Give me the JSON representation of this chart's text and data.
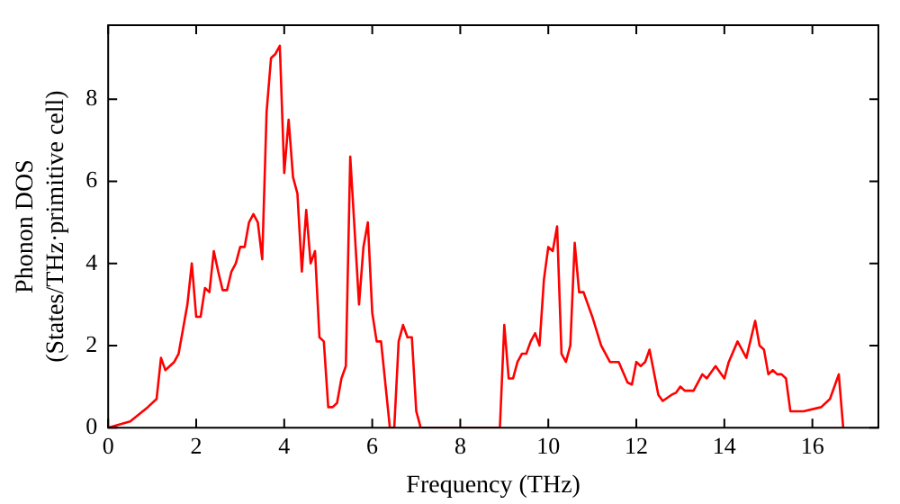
{
  "chart_data": {
    "type": "line",
    "xlabel": "Frequency (THz)",
    "ylabel": "Phonon DOS\n(States/THz·primitive cell)",
    "xlim": [
      0,
      17.5
    ],
    "ylim": [
      0,
      9.8
    ],
    "xticks": [
      0,
      2,
      4,
      6,
      8,
      10,
      12,
      14,
      16
    ],
    "yticks": [
      0,
      2,
      4,
      6,
      8
    ],
    "grid": false,
    "legend": false,
    "marker": "none",
    "line_style": "solid",
    "series": [
      {
        "color": "#ff0000",
        "x": [
          0,
          0.5,
          0.9,
          1.1,
          1.2,
          1.3,
          1.5,
          1.6,
          1.7,
          1.8,
          1.9,
          2.0,
          2.1,
          2.2,
          2.3,
          2.4,
          2.5,
          2.6,
          2.7,
          2.8,
          2.9,
          3.0,
          3.1,
          3.2,
          3.3,
          3.4,
          3.5,
          3.6,
          3.7,
          3.8,
          3.9,
          4.0,
          4.1,
          4.2,
          4.3,
          4.4,
          4.5,
          4.6,
          4.7,
          4.8,
          4.9,
          5.0,
          5.1,
          5.2,
          5.3,
          5.4,
          5.5,
          5.7,
          5.8,
          5.9,
          6.0,
          6.1,
          6.2,
          6.4,
          6.5,
          6.6,
          6.7,
          6.8,
          6.9,
          7.0,
          7.1,
          8.9,
          9.0,
          9.1,
          9.2,
          9.3,
          9.4,
          9.5,
          9.6,
          9.7,
          9.8,
          9.9,
          10.0,
          10.1,
          10.2,
          10.3,
          10.4,
          10.5,
          10.6,
          10.7,
          10.8,
          11.0,
          11.2,
          11.4,
          11.6,
          11.8,
          11.9,
          12.0,
          12.1,
          12.2,
          12.3,
          12.5,
          12.6,
          12.8,
          12.9,
          13.0,
          13.1,
          13.3,
          13.5,
          13.6,
          13.8,
          14.0,
          14.1,
          14.3,
          14.5,
          14.7,
          14.8,
          14.9,
          15.0,
          15.1,
          15.2,
          15.3,
          15.4,
          15.5,
          15.8,
          16.2,
          16.4,
          16.6,
          16.7
        ],
        "values": [
          0,
          0.15,
          0.5,
          0.7,
          1.7,
          1.4,
          1.6,
          1.8,
          2.4,
          3.0,
          4.0,
          2.7,
          2.7,
          3.4,
          3.3,
          4.3,
          3.8,
          3.35,
          3.35,
          3.8,
          4.0,
          4.4,
          4.4,
          5.0,
          5.2,
          5.0,
          4.1,
          7.7,
          9.0,
          9.1,
          9.3,
          6.2,
          7.5,
          6.1,
          5.7,
          3.8,
          5.3,
          4.0,
          4.3,
          2.2,
          2.1,
          0.5,
          0.5,
          0.6,
          1.2,
          1.5,
          6.6,
          3.0,
          4.4,
          5.0,
          2.8,
          2.1,
          2.1,
          0,
          0,
          2.1,
          2.5,
          2.2,
          2.2,
          0.4,
          0,
          0,
          2.5,
          1.2,
          1.2,
          1.6,
          1.8,
          1.8,
          2.1,
          2.3,
          2.0,
          3.6,
          4.4,
          4.3,
          4.9,
          1.8,
          1.6,
          2.0,
          4.5,
          3.3,
          3.3,
          2.7,
          2.0,
          1.6,
          1.6,
          1.1,
          1.05,
          1.6,
          1.5,
          1.6,
          1.9,
          0.8,
          0.65,
          0.8,
          0.85,
          1.0,
          0.9,
          0.9,
          1.3,
          1.2,
          1.5,
          1.2,
          1.6,
          2.1,
          1.7,
          2.6,
          2.0,
          1.9,
          1.3,
          1.4,
          1.3,
          1.3,
          1.2,
          0.4,
          0.4,
          0.5,
          0.7,
          1.3,
          0
        ]
      }
    ]
  }
}
